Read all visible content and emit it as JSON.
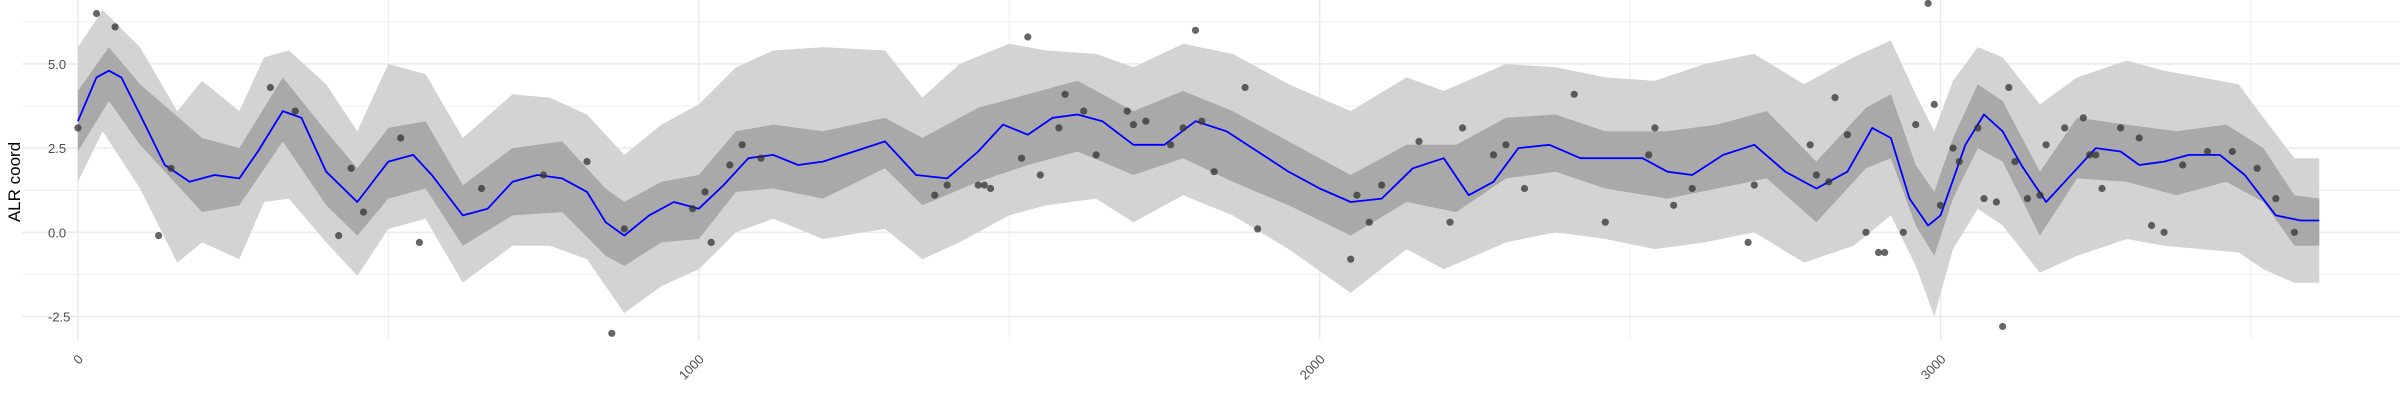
{
  "chart_data": {
    "type": "line",
    "title": "",
    "xlabel": "",
    "ylabel": "ALR coord",
    "xlim": [
      -90,
      3740
    ],
    "ylim": [
      -3.2,
      6.9
    ],
    "x_ticks": [
      {
        "value": 0,
        "label": "0"
      },
      {
        "value": 1000,
        "label": "1000"
      },
      {
        "value": 2000,
        "label": "2000"
      },
      {
        "value": 3000,
        "label": "3000"
      }
    ],
    "y_ticks": [
      {
        "value": -2.5,
        "label": "-2.5"
      },
      {
        "value": 0,
        "label": "0.0"
      },
      {
        "value": 2.5,
        "label": "2.5"
      },
      {
        "value": 5,
        "label": "5.0"
      }
    ],
    "grid": true,
    "colors": {
      "mean_line": "#0000ff",
      "inner_band": "#a9a9a9",
      "outer_band": "#d3d3d3",
      "points": "#333333",
      "grid": "#ebebeb"
    },
    "series": [
      {
        "kind": "mean-line",
        "x": [
          0,
          30,
          50,
          70,
          100,
          140,
          180,
          220,
          260,
          290,
          330,
          360,
          400,
          450,
          500,
          540,
          570,
          620,
          660,
          700,
          740,
          780,
          820,
          850,
          880,
          920,
          960,
          1000,
          1040,
          1080,
          1120,
          1160,
          1200,
          1250,
          1300,
          1350,
          1400,
          1450,
          1490,
          1530,
          1570,
          1610,
          1650,
          1700,
          1750,
          1800,
          1850,
          1900,
          1950,
          2000,
          2050,
          2100,
          2150,
          2200,
          2240,
          2280,
          2320,
          2370,
          2420,
          2470,
          2520,
          2560,
          2600,
          2650,
          2700,
          2750,
          2800,
          2850,
          2890,
          2920,
          2950,
          2980,
          3000,
          3040,
          3070,
          3100,
          3130,
          3170,
          3200,
          3250,
          3290,
          3320,
          3360,
          3400,
          3450,
          3490,
          3540,
          3580,
          3610
        ],
        "y": [
          3.3,
          4.6,
          4.8,
          4.6,
          3.5,
          2.0,
          1.5,
          1.7,
          1.6,
          2.4,
          3.6,
          3.4,
          1.8,
          0.9,
          2.1,
          2.3,
          1.7,
          0.5,
          0.7,
          1.5,
          1.7,
          1.6,
          1.2,
          0.3,
          -0.1,
          0.5,
          0.9,
          0.7,
          1.4,
          2.2,
          2.3,
          2.0,
          2.1,
          2.4,
          2.7,
          1.7,
          1.6,
          2.4,
          3.2,
          2.9,
          3.4,
          3.5,
          3.3,
          2.6,
          2.6,
          3.3,
          3.0,
          2.4,
          1.8,
          1.3,
          0.9,
          1.0,
          1.9,
          2.2,
          1.1,
          1.5,
          2.5,
          2.6,
          2.2,
          2.2,
          2.2,
          1.8,
          1.7,
          2.3,
          2.6,
          1.8,
          1.3,
          1.8,
          3.1,
          2.8,
          1.0,
          0.2,
          0.5,
          2.6,
          3.5,
          3.0,
          2.0,
          0.9,
          1.5,
          2.5,
          2.4,
          2.0,
          2.1,
          2.3,
          2.3,
          1.7,
          0.5,
          0.35,
          0.35
        ]
      },
      {
        "kind": "inner-band-upper",
        "x": [
          0,
          50,
          100,
          200,
          260,
          330,
          400,
          450,
          500,
          560,
          620,
          700,
          780,
          850,
          880,
          940,
          1000,
          1060,
          1120,
          1200,
          1300,
          1360,
          1450,
          1530,
          1610,
          1700,
          1780,
          1860,
          1950,
          2050,
          2140,
          2220,
          2300,
          2380,
          2460,
          2560,
          2640,
          2720,
          2800,
          2880,
          2920,
          2960,
          2990,
          3020,
          3060,
          3100,
          3160,
          3220,
          3300,
          3380,
          3460,
          3520,
          3570,
          3610
        ],
        "y": [
          4.2,
          5.5,
          4.4,
          2.8,
          2.5,
          4.6,
          3.0,
          1.9,
          3.1,
          3.3,
          1.4,
          2.5,
          2.7,
          1.3,
          0.9,
          1.5,
          1.7,
          3.0,
          3.2,
          3.0,
          3.4,
          2.8,
          3.7,
          4.1,
          4.5,
          3.6,
          4.2,
          3.6,
          2.7,
          1.7,
          2.6,
          2.6,
          3.4,
          3.5,
          3.0,
          3.0,
          3.2,
          3.6,
          2.1,
          3.7,
          4.1,
          2.0,
          1.2,
          2.8,
          4.4,
          3.9,
          1.8,
          3.4,
          3.2,
          3.0,
          3.2,
          2.5,
          1.1,
          1.0
        ]
      },
      {
        "kind": "inner-band-lower",
        "x": [
          0,
          50,
          100,
          200,
          260,
          330,
          400,
          450,
          500,
          560,
          620,
          700,
          780,
          850,
          880,
          940,
          1000,
          1060,
          1120,
          1200,
          1300,
          1360,
          1450,
          1530,
          1610,
          1700,
          1780,
          1860,
          1950,
          2050,
          2140,
          2220,
          2300,
          2380,
          2460,
          2560,
          2640,
          2720,
          2800,
          2880,
          2920,
          2960,
          2990,
          3020,
          3060,
          3100,
          3160,
          3220,
          3300,
          3380,
          3460,
          3520,
          3570,
          3610
        ],
        "y": [
          2.4,
          3.9,
          2.6,
          0.6,
          0.8,
          2.7,
          0.8,
          -0.1,
          1.0,
          1.3,
          -0.4,
          0.5,
          0.6,
          -0.7,
          -1.0,
          -0.3,
          -0.2,
          1.2,
          1.3,
          1.0,
          1.9,
          0.8,
          1.5,
          2.0,
          2.4,
          1.7,
          2.2,
          1.5,
          0.8,
          -0.1,
          0.9,
          0.6,
          1.6,
          1.8,
          1.3,
          1.0,
          1.3,
          1.6,
          0.3,
          1.9,
          2.2,
          0.2,
          -0.7,
          1.0,
          2.5,
          2.1,
          -0.1,
          1.6,
          1.5,
          1.1,
          1.5,
          0.9,
          -0.4,
          -0.4
        ]
      },
      {
        "kind": "outer-band-upper",
        "x": [
          0,
          40,
          100,
          160,
          200,
          260,
          300,
          340,
          400,
          450,
          500,
          560,
          620,
          700,
          760,
          820,
          880,
          940,
          1000,
          1060,
          1120,
          1200,
          1300,
          1360,
          1420,
          1500,
          1560,
          1640,
          1700,
          1780,
          1860,
          1950,
          2050,
          2140,
          2200,
          2300,
          2380,
          2460,
          2540,
          2620,
          2700,
          2780,
          2860,
          2920,
          2960,
          2990,
          3020,
          3060,
          3100,
          3160,
          3220,
          3300,
          3360,
          3420,
          3480,
          3520,
          3570,
          3610
        ],
        "y": [
          5.5,
          6.6,
          5.5,
          3.6,
          4.5,
          3.6,
          5.2,
          5.4,
          4.4,
          3.0,
          5.0,
          4.7,
          2.8,
          4.1,
          4.0,
          3.5,
          2.3,
          3.2,
          3.8,
          4.9,
          5.4,
          5.5,
          5.4,
          4.0,
          5.0,
          5.6,
          5.4,
          5.3,
          4.9,
          5.6,
          5.3,
          4.4,
          3.6,
          4.6,
          4.2,
          5.0,
          4.9,
          4.6,
          4.5,
          5.0,
          5.3,
          4.4,
          5.2,
          5.7,
          4.1,
          3.0,
          4.5,
          5.5,
          5.2,
          3.8,
          4.6,
          5.1,
          4.8,
          4.6,
          4.4,
          3.4,
          2.2,
          2.2
        ]
      },
      {
        "kind": "outer-band-lower",
        "x": [
          0,
          40,
          100,
          160,
          200,
          260,
          300,
          340,
          400,
          450,
          500,
          560,
          620,
          700,
          760,
          820,
          880,
          940,
          1000,
          1060,
          1120,
          1200,
          1300,
          1360,
          1420,
          1500,
          1560,
          1640,
          1700,
          1780,
          1860,
          1950,
          2050,
          2140,
          2200,
          2300,
          2380,
          2460,
          2540,
          2620,
          2700,
          2780,
          2860,
          2920,
          2960,
          2990,
          3020,
          3060,
          3100,
          3160,
          3220,
          3300,
          3360,
          3420,
          3480,
          3520,
          3570,
          3610
        ],
        "y": [
          1.5,
          3.0,
          1.3,
          -0.9,
          -0.3,
          -0.8,
          0.9,
          1.0,
          -0.3,
          -1.3,
          0.1,
          0.4,
          -1.5,
          -0.4,
          -0.4,
          -0.8,
          -2.4,
          -1.6,
          -1.1,
          0.0,
          0.4,
          -0.2,
          0.1,
          -0.8,
          -0.3,
          0.5,
          0.8,
          1.0,
          0.3,
          1.1,
          0.5,
          -0.5,
          -1.8,
          -0.5,
          -1.1,
          -0.3,
          0.0,
          -0.2,
          -0.5,
          -0.3,
          0.0,
          -0.9,
          -0.4,
          0.5,
          -1.0,
          -2.5,
          -0.5,
          0.7,
          0.2,
          -1.2,
          -0.7,
          -0.2,
          -0.4,
          -0.5,
          -0.6,
          -1.1,
          -1.5,
          -1.5
        ]
      },
      {
        "kind": "points",
        "x": [
          0,
          30,
          60,
          130,
          150,
          310,
          350,
          420,
          440,
          460,
          520,
          550,
          650,
          750,
          820,
          860,
          880,
          990,
          1010,
          1020,
          1050,
          1070,
          1100,
          1380,
          1400,
          1450,
          1460,
          1470,
          1520,
          1530,
          1550,
          1580,
          1590,
          1620,
          1640,
          1690,
          1700,
          1720,
          1760,
          1780,
          1800,
          1810,
          1830,
          1880,
          1900,
          2050,
          2060,
          2080,
          2100,
          2160,
          2210,
          2230,
          2280,
          2300,
          2330,
          2410,
          2460,
          2530,
          2540,
          2570,
          2600,
          2690,
          2700,
          2790,
          2800,
          2820,
          2830,
          2850,
          2880,
          2900,
          2910,
          2940,
          2960,
          2980,
          2990,
          3000,
          3020,
          3030,
          3060,
          3070,
          3090,
          3100,
          3110,
          3120,
          3140,
          3160,
          3170,
          3200,
          3230,
          3240,
          3250,
          3260,
          3290,
          3320,
          3340,
          3360,
          3390,
          3430,
          3470,
          3510,
          3540,
          3570
        ],
        "y": [
          3.1,
          6.5,
          6.1,
          -0.1,
          1.9,
          4.3,
          3.6,
          -0.1,
          1.9,
          0.6,
          2.8,
          -0.3,
          1.3,
          1.7,
          2.1,
          -3.0,
          0.1,
          0.7,
          1.2,
          -0.3,
          2.0,
          2.6,
          2.2,
          1.1,
          1.4,
          1.4,
          1.4,
          1.3,
          2.2,
          5.8,
          1.7,
          3.1,
          4.1,
          3.6,
          2.3,
          3.6,
          3.2,
          3.3,
          2.6,
          3.1,
          6.0,
          3.3,
          1.8,
          4.3,
          0.1,
          -0.8,
          1.1,
          0.3,
          1.4,
          2.7,
          0.3,
          3.1,
          2.3,
          2.6,
          1.3,
          4.1,
          0.3,
          2.3,
          3.1,
          0.8,
          1.3,
          -0.3,
          1.4,
          2.6,
          1.7,
          1.5,
          4.0,
          2.9,
          0.0,
          -0.6,
          -0.6,
          0.0,
          3.2,
          6.8,
          3.8,
          0.8,
          2.5,
          2.1,
          3.1,
          1.0,
          0.9,
          -2.8,
          4.3,
          2.1,
          1.0,
          1.1,
          2.6,
          3.1,
          3.4,
          2.3,
          2.3,
          1.3,
          3.1,
          2.8,
          0.2,
          0.0,
          2.0,
          2.4,
          2.4,
          1.9,
          1.0,
          0.0
        ]
      }
    ]
  }
}
